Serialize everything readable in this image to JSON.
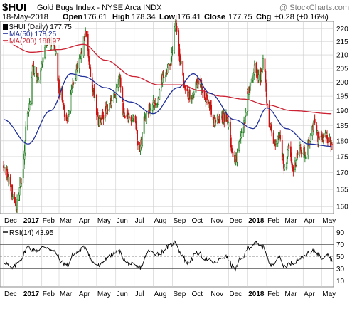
{
  "header": {
    "symbol": "$HUI",
    "name": "Gold Bugs Index - NYSE Arca INDX",
    "watermark": "@ StockCharts.com",
    "date": "18-May-2018",
    "quote": {
      "open_label": "Open",
      "open": "176.61",
      "high_label": "High",
      "high": "178.34",
      "low_label": "Low",
      "low": "176.41",
      "close_label": "Close",
      "close": "177.75",
      "chg_label": "Chg",
      "chg": "+0.28 (+0.16%)"
    }
  },
  "colors": {
    "up_candle": "#1a7a1a",
    "down_candle": "#cc1111",
    "ma50": "#1f2f99",
    "ma200": "#cc2233",
    "grid": "#cccccc",
    "rsi_line": "#000000",
    "rsi_fill": "#cccccc",
    "legend_marker_price": "#000000"
  },
  "legends": {
    "price": "$HUI (Daily) 177.75",
    "ma50": "MA(50) 178.25",
    "ma200": "MA(200) 188.97",
    "rsi": "RSI(14) 43.95"
  },
  "chart_data": [
    {
      "type": "candlestick",
      "x_range": [
        "2016-12-01",
        "2018-05-18"
      ],
      "ylim": [
        158,
        223
      ],
      "scale": "log",
      "y_ticks": [
        160,
        165,
        170,
        175,
        180,
        185,
        190,
        195,
        200,
        205,
        210,
        215,
        220
      ],
      "x_tick_labels": [
        "Dec",
        "2017",
        "Feb",
        "Mar",
        "Apr",
        "May",
        "Jun",
        "Jul",
        "Aug",
        "Sep",
        "Oct",
        "Nov",
        "Dec",
        "2018",
        "Feb",
        "Mar",
        "Apr",
        "May"
      ],
      "x_tick_dates": [
        "2016-12-01",
        "2017-01-01",
        "2017-02-01",
        "2017-03-01",
        "2017-04-01",
        "2017-05-01",
        "2017-06-01",
        "2017-07-01",
        "2017-08-01",
        "2017-09-01",
        "2017-10-01",
        "2017-11-01",
        "2017-12-01",
        "2018-01-01",
        "2018-02-01",
        "2018-03-01",
        "2018-04-01",
        "2018-05-01"
      ],
      "price_anchors": [
        [
          "2016-12-01",
          172
        ],
        [
          "2016-12-09",
          168
        ],
        [
          "2016-12-20",
          160
        ],
        [
          "2016-12-30",
          168
        ],
        [
          "2017-01-10",
          190
        ],
        [
          "2017-01-18",
          205
        ],
        [
          "2017-01-27",
          201
        ],
        [
          "2017-02-08",
          215
        ],
        [
          "2017-02-22",
          213
        ],
        [
          "2017-03-02",
          197
        ],
        [
          "2017-03-14",
          187
        ],
        [
          "2017-03-22",
          198
        ],
        [
          "2017-04-04",
          208
        ],
        [
          "2017-04-13",
          218
        ],
        [
          "2017-04-24",
          198
        ],
        [
          "2017-05-05",
          186
        ],
        [
          "2017-05-16",
          190
        ],
        [
          "2017-05-31",
          195
        ],
        [
          "2017-06-06",
          201
        ],
        [
          "2017-06-16",
          187
        ],
        [
          "2017-06-30",
          188
        ],
        [
          "2017-07-10",
          178
        ],
        [
          "2017-07-19",
          188
        ],
        [
          "2017-07-28",
          192
        ],
        [
          "2017-08-08",
          193
        ],
        [
          "2017-08-16",
          202
        ],
        [
          "2017-08-29",
          207
        ],
        [
          "2017-09-06",
          221
        ],
        [
          "2017-09-14",
          208
        ],
        [
          "2017-09-22",
          197
        ],
        [
          "2017-10-02",
          194
        ],
        [
          "2017-10-13",
          201
        ],
        [
          "2017-10-20",
          197
        ],
        [
          "2017-10-31",
          192
        ],
        [
          "2017-11-06",
          186
        ],
        [
          "2017-11-17",
          187
        ],
        [
          "2017-11-28",
          188
        ],
        [
          "2017-12-08",
          176
        ],
        [
          "2017-12-13",
          174
        ],
        [
          "2017-12-22",
          182
        ],
        [
          "2018-01-04",
          198
        ],
        [
          "2018-01-12",
          205
        ],
        [
          "2018-01-22",
          201
        ],
        [
          "2018-01-26",
          208
        ],
        [
          "2018-02-05",
          186
        ],
        [
          "2018-02-12",
          178
        ],
        [
          "2018-02-21",
          181
        ],
        [
          "2018-03-01",
          172
        ],
        [
          "2018-03-09",
          177
        ],
        [
          "2018-03-15",
          171
        ],
        [
          "2018-03-26",
          177
        ],
        [
          "2018-04-05",
          176
        ],
        [
          "2018-04-13",
          181
        ],
        [
          "2018-04-19",
          186
        ],
        [
          "2018-04-27",
          180
        ],
        [
          "2018-05-07",
          182
        ],
        [
          "2018-05-14",
          180
        ],
        [
          "2018-05-18",
          177.75
        ]
      ],
      "ma50_anchors": [
        [
          "2016-12-01",
          187
        ],
        [
          "2017-01-10",
          179
        ],
        [
          "2017-02-15",
          190
        ],
        [
          "2017-03-20",
          203
        ],
        [
          "2017-04-10",
          202
        ],
        [
          "2017-05-15",
          198
        ],
        [
          "2017-06-25",
          193
        ],
        [
          "2017-08-01",
          189
        ],
        [
          "2017-09-10",
          198
        ],
        [
          "2017-10-05",
          203
        ],
        [
          "2017-11-01",
          196
        ],
        [
          "2017-12-10",
          187
        ],
        [
          "2018-01-10",
          184
        ],
        [
          "2018-02-01",
          191
        ],
        [
          "2018-03-05",
          184
        ],
        [
          "2018-04-10",
          179
        ],
        [
          "2018-05-18",
          178.25
        ]
      ],
      "ma200_anchors": [
        [
          "2016-12-01",
          215
        ],
        [
          "2017-01-15",
          211
        ],
        [
          "2017-03-01",
          212
        ],
        [
          "2017-04-10",
          214
        ],
        [
          "2017-05-15",
          208
        ],
        [
          "2017-06-30",
          202
        ],
        [
          "2017-08-10",
          199
        ],
        [
          "2017-09-15",
          199
        ],
        [
          "2017-10-15",
          197
        ],
        [
          "2017-11-20",
          195
        ],
        [
          "2017-12-25",
          194
        ],
        [
          "2018-02-01",
          192
        ],
        [
          "2018-03-15",
          190
        ],
        [
          "2018-05-18",
          188.97
        ]
      ]
    },
    {
      "type": "line",
      "title": "RSI(14) 43.95",
      "ylim": [
        0,
        100
      ],
      "y_ticks": [
        10,
        30,
        50,
        70,
        90
      ],
      "reference_lines": [
        30,
        70
      ],
      "dashed_line": 50,
      "x_tick_labels": [
        "Dec",
        "2017",
        "Feb",
        "Mar",
        "Apr",
        "May",
        "Jun",
        "Jul",
        "Aug",
        "Sep",
        "Oct",
        "Nov",
        "Dec",
        "2018",
        "Feb",
        "Mar",
        "Apr",
        "May"
      ],
      "rsi_anchors": [
        [
          "2016-12-01",
          42
        ],
        [
          "2016-12-15",
          30
        ],
        [
          "2016-12-28",
          45
        ],
        [
          "2017-01-10",
          66
        ],
        [
          "2017-01-20",
          60
        ],
        [
          "2017-02-08",
          66
        ],
        [
          "2017-02-22",
          58
        ],
        [
          "2017-03-06",
          40
        ],
        [
          "2017-03-15",
          36
        ],
        [
          "2017-03-25",
          55
        ],
        [
          "2017-04-13",
          65
        ],
        [
          "2017-04-25",
          40
        ],
        [
          "2017-05-05",
          35
        ],
        [
          "2017-05-20",
          50
        ],
        [
          "2017-06-06",
          58
        ],
        [
          "2017-06-20",
          39
        ],
        [
          "2017-07-10",
          32
        ],
        [
          "2017-07-25",
          58
        ],
        [
          "2017-08-10",
          55
        ],
        [
          "2017-08-25",
          66
        ],
        [
          "2017-09-06",
          74
        ],
        [
          "2017-09-15",
          55
        ],
        [
          "2017-09-25",
          40
        ],
        [
          "2017-10-12",
          56
        ],
        [
          "2017-10-25",
          46
        ],
        [
          "2017-11-08",
          40
        ],
        [
          "2017-11-25",
          50
        ],
        [
          "2017-12-12",
          30
        ],
        [
          "2017-12-20",
          45
        ],
        [
          "2018-01-05",
          66
        ],
        [
          "2018-01-12",
          72
        ],
        [
          "2018-01-26",
          66
        ],
        [
          "2018-02-08",
          35
        ],
        [
          "2018-02-20",
          50
        ],
        [
          "2018-03-01",
          35
        ],
        [
          "2018-03-15",
          40
        ],
        [
          "2018-03-28",
          48
        ],
        [
          "2018-04-10",
          55
        ],
        [
          "2018-04-20",
          60
        ],
        [
          "2018-05-01",
          48
        ],
        [
          "2018-05-10",
          56
        ],
        [
          "2018-05-18",
          43.95
        ]
      ]
    }
  ]
}
